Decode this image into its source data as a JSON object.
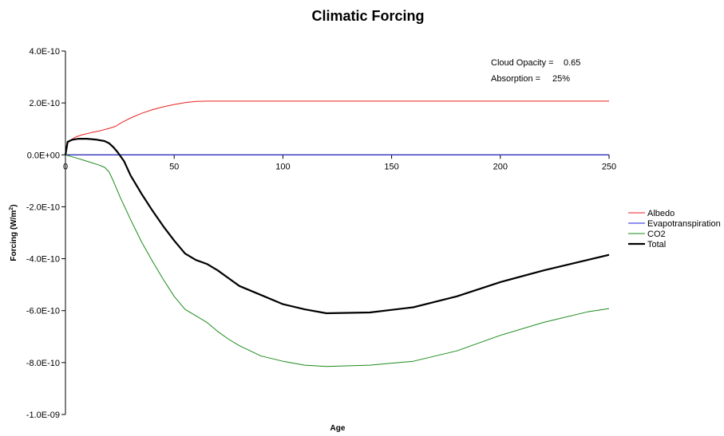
{
  "chart_data": {
    "type": "line",
    "title": "Climatic Forcing",
    "xlabel": "Age",
    "ylabel_main": "Forcing (W/m",
    "ylabel_sup": "2",
    "ylabel_close": ")",
    "xlim": [
      0,
      250
    ],
    "ylim": [
      -1e-09,
      4e-10
    ],
    "x_ticks": [
      {
        "value": 0,
        "label": "0"
      },
      {
        "value": 50,
        "label": "50"
      },
      {
        "value": 100,
        "label": "100"
      },
      {
        "value": 150,
        "label": "150"
      },
      {
        "value": 200,
        "label": "200"
      },
      {
        "value": 250,
        "label": "250"
      }
    ],
    "y_ticks": [
      {
        "value": 4e-10,
        "label": "4.0E-10"
      },
      {
        "value": 2e-10,
        "label": "2.0E-10"
      },
      {
        "value": 0,
        "label": "0.0E+00"
      },
      {
        "value": -2e-10,
        "label": "-2.0E-10"
      },
      {
        "value": -4e-10,
        "label": "-4.0E-10"
      },
      {
        "value": -6e-10,
        "label": "-6.0E-10"
      },
      {
        "value": -8e-10,
        "label": "-8.0E-10"
      },
      {
        "value": -1e-09,
        "label": "-1.0E-09"
      }
    ],
    "grid": false,
    "legend_position": "right",
    "annotations": [
      {
        "label": "Cloud Opacity =",
        "value": "0.65"
      },
      {
        "label": "Absorption =",
        "value": "25%"
      }
    ],
    "series": [
      {
        "name": "Albedo",
        "color": "#e8201c",
        "width": 1,
        "points": [
          [
            0,
            0
          ],
          [
            1,
            4.5e-11
          ],
          [
            3,
            6e-11
          ],
          [
            5,
            7e-11
          ],
          [
            8,
            7.8e-11
          ],
          [
            12,
            8.6e-11
          ],
          [
            16,
            9.3e-11
          ],
          [
            20,
            1.02e-10
          ],
          [
            23,
            1.1e-10
          ],
          [
            26,
            1.25e-10
          ],
          [
            30,
            1.42e-10
          ],
          [
            35,
            1.6e-10
          ],
          [
            40,
            1.74e-10
          ],
          [
            45,
            1.85e-10
          ],
          [
            50,
            1.94e-10
          ],
          [
            55,
            2.01e-10
          ],
          [
            60,
            2.06e-10
          ],
          [
            65,
            2.07e-10
          ],
          [
            250,
            2.07e-10
          ]
        ]
      },
      {
        "name": "Evapotranspiration",
        "color": "#2020e0",
        "width": 1,
        "points": [
          [
            0,
            0
          ],
          [
            250,
            0
          ]
        ]
      },
      {
        "name": "CO2",
        "color": "#1a8a1a",
        "width": 1,
        "points": [
          [
            0,
            0
          ],
          [
            5,
            -1.2e-11
          ],
          [
            10,
            -2.5e-11
          ],
          [
            15,
            -3.8e-11
          ],
          [
            18,
            -4.8e-11
          ],
          [
            20,
            -6.5e-11
          ],
          [
            22,
            -1e-10
          ],
          [
            25,
            -1.6e-10
          ],
          [
            30,
            -2.5e-10
          ],
          [
            35,
            -3.35e-10
          ],
          [
            40,
            -4.1e-10
          ],
          [
            45,
            -4.8e-10
          ],
          [
            50,
            -5.45e-10
          ],
          [
            55,
            -5.95e-10
          ],
          [
            60,
            -6.2e-10
          ],
          [
            65,
            -6.45e-10
          ],
          [
            70,
            -6.8e-10
          ],
          [
            75,
            -7.1e-10
          ],
          [
            80,
            -7.35e-10
          ],
          [
            90,
            -7.75e-10
          ],
          [
            100,
            -7.95e-10
          ],
          [
            110,
            -8.1e-10
          ],
          [
            120,
            -8.15e-10
          ],
          [
            140,
            -8.1e-10
          ],
          [
            160,
            -7.95e-10
          ],
          [
            180,
            -7.55e-10
          ],
          [
            200,
            -6.95e-10
          ],
          [
            220,
            -6.45e-10
          ],
          [
            240,
            -6.05e-10
          ],
          [
            250,
            -5.92e-10
          ]
        ]
      },
      {
        "name": "Total",
        "color": "#000000",
        "width": 2.2,
        "points": [
          [
            0,
            0
          ],
          [
            1,
            5e-11
          ],
          [
            3,
            5.8e-11
          ],
          [
            6,
            6.2e-11
          ],
          [
            10,
            6.2e-11
          ],
          [
            14,
            5.9e-11
          ],
          [
            18,
            5.3e-11
          ],
          [
            20,
            4.5e-11
          ],
          [
            22,
            3e-11
          ],
          [
            24,
            1e-11
          ],
          [
            27,
            -2.5e-11
          ],
          [
            30,
            -8e-11
          ],
          [
            35,
            -1.5e-10
          ],
          [
            40,
            -2.15e-10
          ],
          [
            45,
            -2.75e-10
          ],
          [
            50,
            -3.3e-10
          ],
          [
            55,
            -3.8e-10
          ],
          [
            60,
            -4.05e-10
          ],
          [
            65,
            -4.2e-10
          ],
          [
            70,
            -4.45e-10
          ],
          [
            75,
            -4.75e-10
          ],
          [
            80,
            -5.05e-10
          ],
          [
            90,
            -5.4e-10
          ],
          [
            100,
            -5.75e-10
          ],
          [
            110,
            -5.95e-10
          ],
          [
            120,
            -6.1e-10
          ],
          [
            140,
            -6.07e-10
          ],
          [
            160,
            -5.87e-10
          ],
          [
            180,
            -5.45e-10
          ],
          [
            200,
            -4.9e-10
          ],
          [
            220,
            -4.45e-10
          ],
          [
            240,
            -4.05e-10
          ],
          [
            250,
            -3.85e-10
          ]
        ]
      }
    ]
  }
}
